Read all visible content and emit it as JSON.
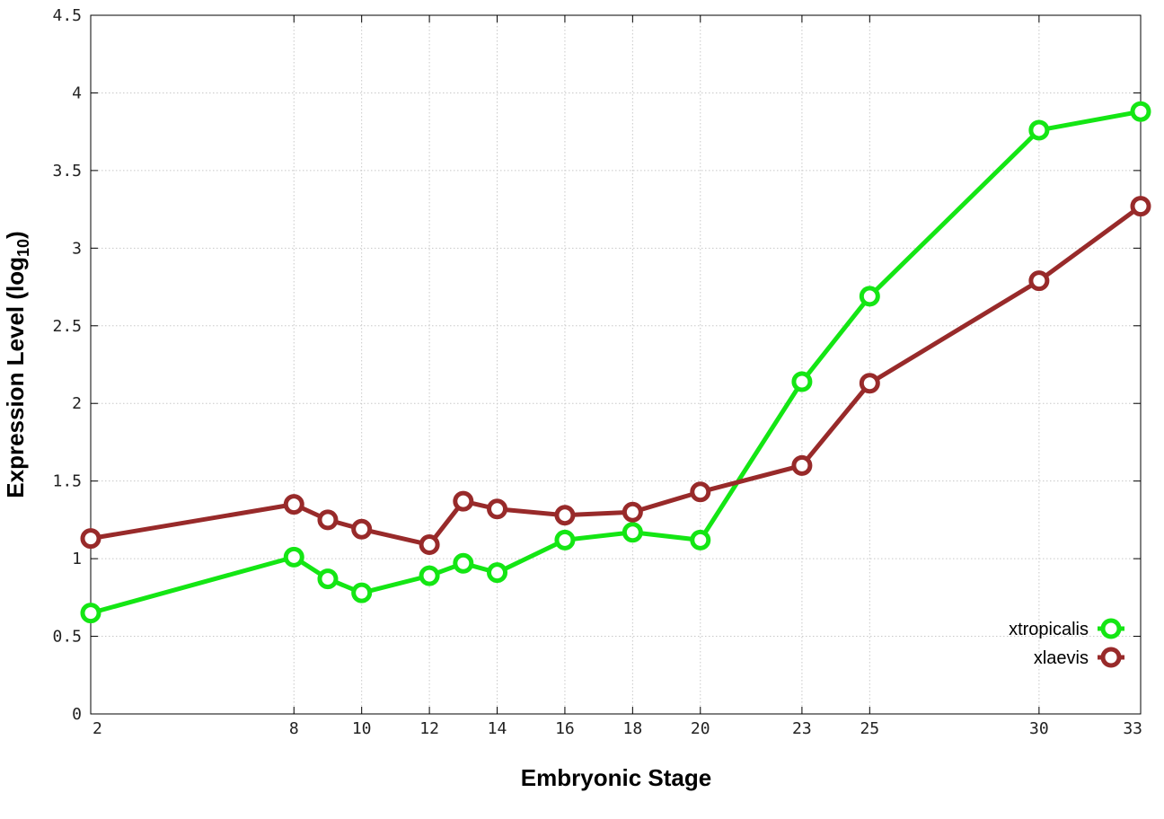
{
  "chart_data": {
    "type": "line",
    "xlabel": "Embryonic Stage",
    "ylabel": "Expression Level (log",
    "ylabel_sub": "10",
    "ylabel_close": ")",
    "x_axis_scale": "categorical-by-stage-number",
    "xlim": [
      2,
      33
    ],
    "ylim": [
      0,
      4.5
    ],
    "x_ticks": [
      2,
      8,
      10,
      12,
      14,
      16,
      18,
      20,
      23,
      25,
      30,
      33
    ],
    "y_ticks": [
      0,
      0.5,
      1,
      1.5,
      2,
      2.5,
      3,
      3.5,
      4,
      4.5
    ],
    "y_tick_labels": [
      "0",
      "0.5",
      "1",
      "1.5",
      "2",
      "2.5",
      "3",
      "3.5",
      "4",
      "4.5"
    ],
    "grid": true,
    "legend_position": "bottom-right",
    "series": [
      {
        "name": "xtropicalis",
        "color": "#14e614",
        "marker": "open-circle",
        "x": [
          2,
          8,
          9,
          10,
          12,
          13,
          14,
          16,
          18,
          20,
          23,
          25,
          30,
          33
        ],
        "y": [
          0.65,
          1.01,
          0.87,
          0.78,
          0.89,
          0.97,
          0.91,
          1.12,
          1.17,
          1.12,
          2.14,
          2.69,
          3.76,
          3.88
        ]
      },
      {
        "name": "xlaevis",
        "color": "#982a2a",
        "marker": "open-circle",
        "x": [
          2,
          8,
          9,
          10,
          12,
          13,
          14,
          16,
          18,
          20,
          23,
          25,
          30,
          33
        ],
        "y": [
          1.13,
          1.35,
          1.25,
          1.19,
          1.09,
          1.37,
          1.32,
          1.28,
          1.3,
          1.43,
          1.6,
          2.13,
          2.79,
          3.27
        ]
      }
    ]
  }
}
